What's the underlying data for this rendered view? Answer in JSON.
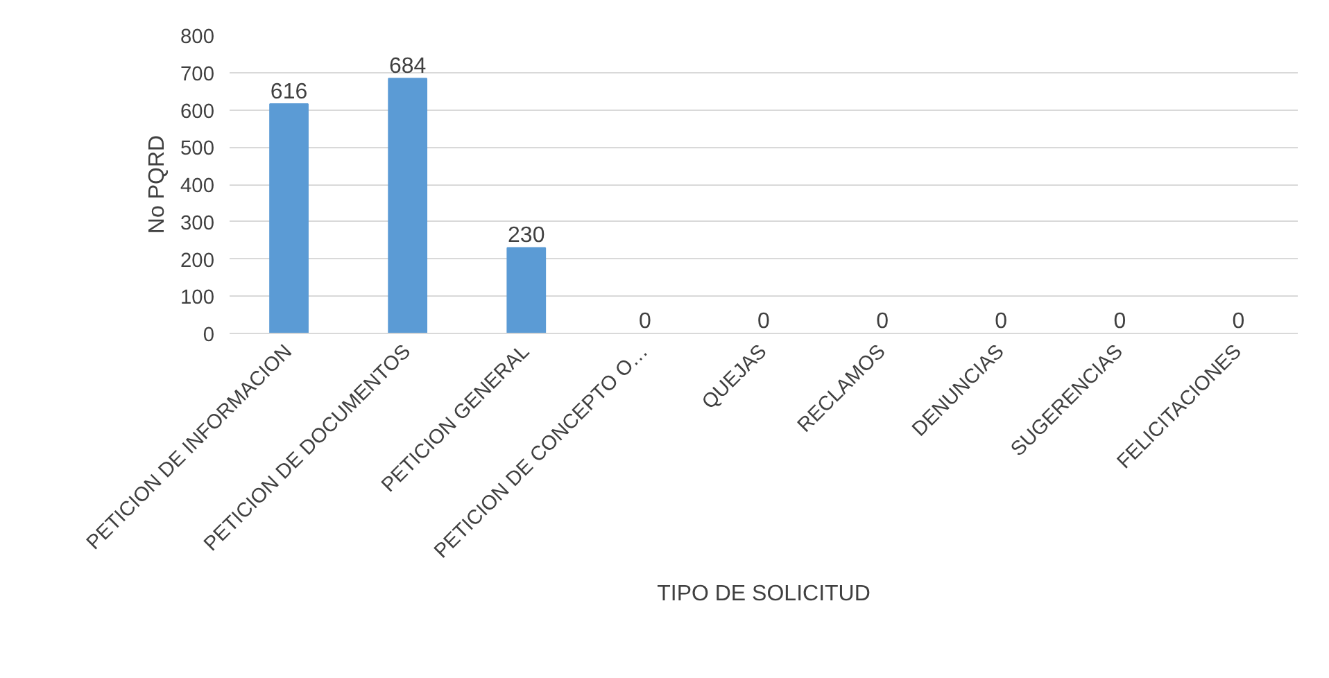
{
  "chart_data": {
    "type": "bar",
    "xlabel": "TIPO DE SOLICITUD",
    "ylabel": "No PQRD",
    "categories": [
      "PETICION DE INFORMACION",
      "PETICION DE DOCUMENTOS",
      "PETICION GENERAL",
      "PETICION DE CONCEPTO O…",
      "QUEJAS",
      "RECLAMOS",
      "DENUNCIAS",
      "SUGERENCIAS",
      "FELICITACIONES"
    ],
    "values": [
      616,
      684,
      230,
      0,
      0,
      0,
      0,
      0,
      0
    ],
    "color": "#5b9bd5",
    "ylim": [
      0,
      800
    ],
    "yticks": [
      0,
      100,
      200,
      300,
      400,
      500,
      600,
      700,
      800
    ],
    "grid": "y",
    "data_labels": true
  }
}
